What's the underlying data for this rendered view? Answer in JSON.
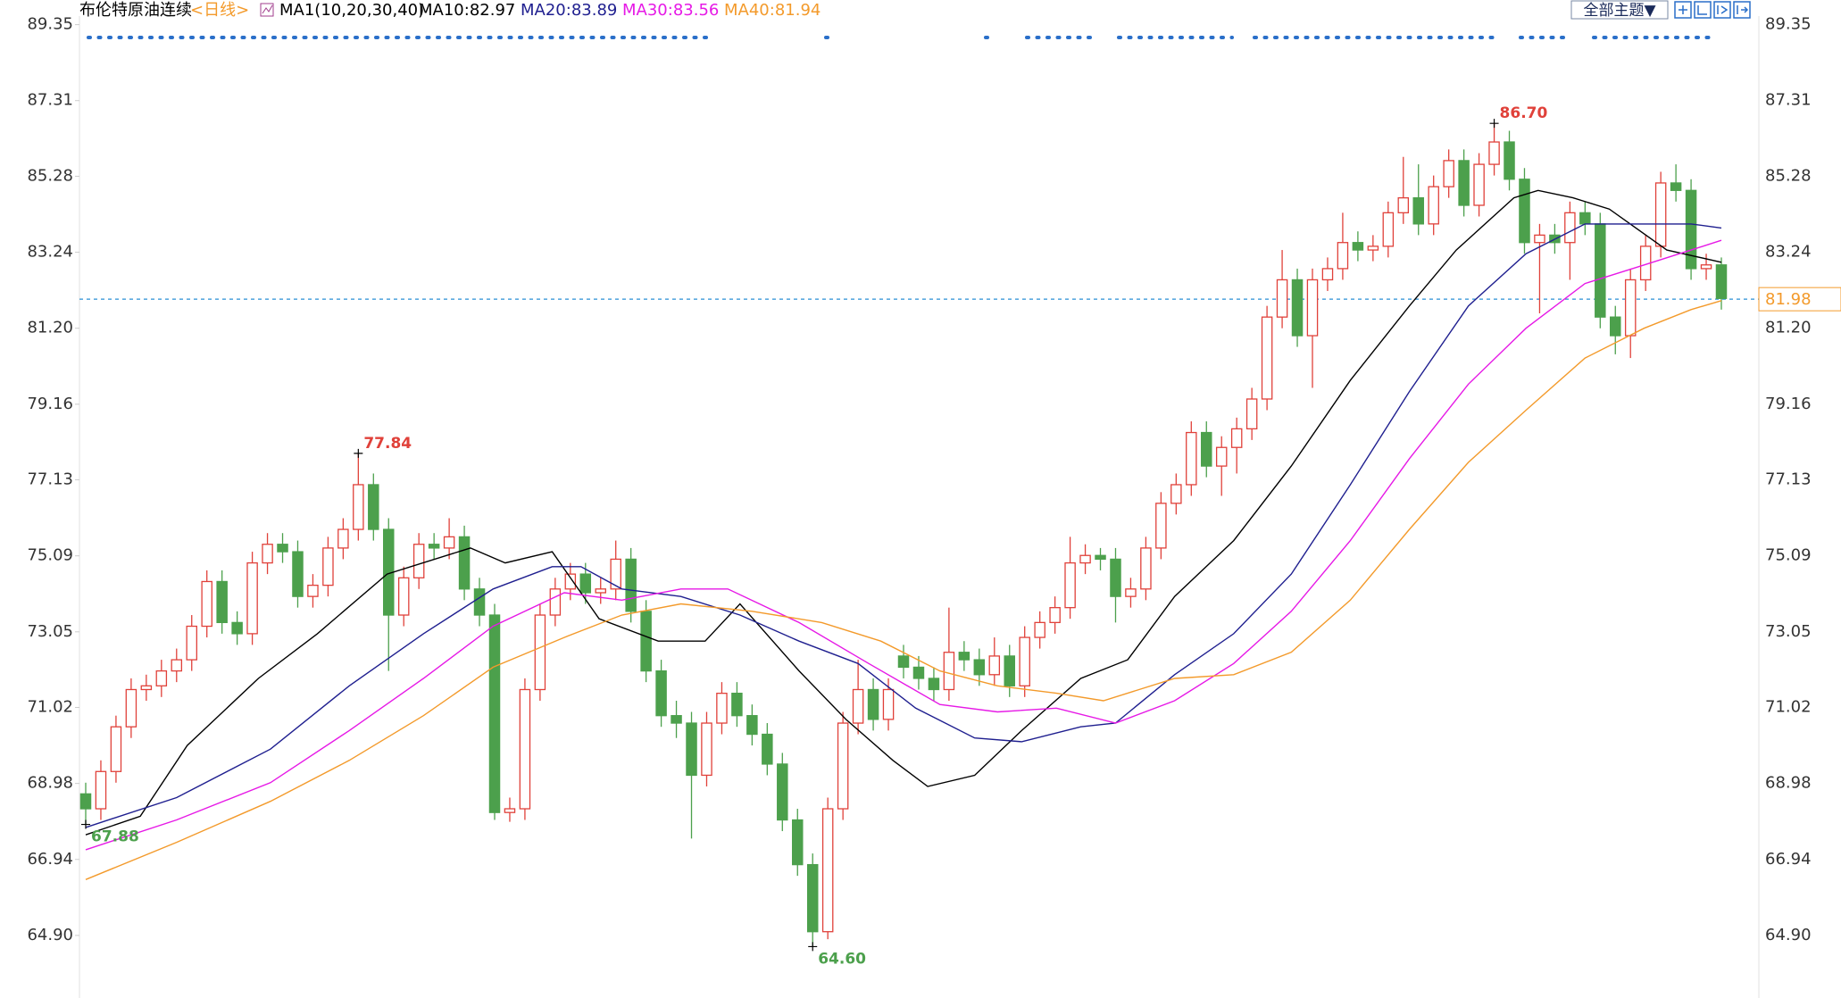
{
  "chart_data": {
    "type": "candlestick",
    "title": "布伦特原油连续",
    "period": "<日线>",
    "indicator": "MA1(10,20,30,40)",
    "button": "全部主题▼",
    "ylim": [
      63.22,
      89.58
    ],
    "yticks": [
      89.35,
      87.31,
      85.28,
      83.24,
      {
        "value": 81.2,
        "label": "81.20"
      },
      79.16,
      77.13,
      75.09,
      73.05,
      71.02,
      68.98,
      66.94,
      {
        "value": 64.9,
        "label": "64.90"
      }
    ],
    "up_color": "#e0413a",
    "down_color": "#4ca04c",
    "ohlc": [
      [
        68.7,
        69.0,
        67.88,
        68.3
      ],
      [
        68.3,
        69.6,
        68.0,
        69.3
      ],
      [
        69.3,
        70.8,
        69.0,
        70.5
      ],
      [
        70.5,
        71.8,
        70.2,
        71.5
      ],
      [
        71.5,
        71.9,
        71.2,
        71.6
      ],
      [
        71.6,
        72.3,
        71.3,
        72.0
      ],
      [
        72.0,
        72.6,
        71.7,
        72.3
      ],
      [
        72.3,
        73.5,
        72.0,
        73.2
      ],
      [
        73.2,
        74.7,
        72.9,
        74.4
      ],
      [
        74.4,
        74.7,
        73.0,
        73.3
      ],
      [
        73.3,
        73.6,
        72.7,
        73.0
      ],
      [
        73.0,
        75.2,
        72.7,
        74.9
      ],
      [
        74.9,
        75.7,
        74.6,
        75.4
      ],
      [
        75.4,
        75.7,
        74.9,
        75.2
      ],
      [
        75.2,
        75.5,
        73.7,
        74.0
      ],
      [
        74.0,
        74.6,
        73.7,
        74.3
      ],
      [
        74.3,
        75.6,
        74.0,
        75.3
      ],
      [
        75.3,
        76.1,
        75.0,
        75.8
      ],
      [
        75.8,
        77.84,
        75.5,
        77.0
      ],
      [
        77.0,
        77.3,
        75.5,
        75.8
      ],
      [
        75.8,
        76.1,
        72.0,
        73.5
      ],
      [
        73.5,
        74.8,
        73.2,
        74.5
      ],
      [
        74.5,
        75.7,
        74.2,
        75.4
      ],
      [
        75.4,
        75.7,
        75.0,
        75.3
      ],
      [
        75.3,
        76.1,
        75.0,
        75.6
      ],
      [
        75.6,
        75.9,
        73.9,
        74.2
      ],
      [
        74.2,
        74.5,
        73.2,
        73.5
      ],
      [
        73.5,
        73.8,
        68.0,
        68.2
      ],
      [
        68.2,
        68.6,
        67.95,
        68.3
      ],
      [
        68.3,
        71.8,
        68.0,
        71.5
      ],
      [
        71.5,
        73.8,
        71.2,
        73.5
      ],
      [
        73.5,
        74.5,
        73.2,
        74.2
      ],
      [
        74.2,
        74.9,
        73.9,
        74.6
      ],
      [
        74.6,
        74.9,
        73.8,
        74.1
      ],
      [
        74.1,
        74.5,
        73.8,
        74.2
      ],
      [
        74.2,
        75.5,
        73.9,
        75.0
      ],
      [
        75.0,
        75.3,
        73.3,
        73.6
      ],
      [
        73.6,
        73.9,
        71.7,
        72.0
      ],
      [
        72.0,
        72.3,
        70.5,
        70.8
      ],
      [
        70.8,
        71.2,
        70.2,
        70.6
      ],
      [
        70.6,
        70.9,
        67.5,
        69.2
      ],
      [
        69.2,
        70.9,
        68.9,
        70.6
      ],
      [
        70.6,
        71.7,
        70.3,
        71.4
      ],
      [
        71.4,
        71.7,
        70.5,
        70.8
      ],
      [
        70.8,
        71.1,
        70.0,
        70.3
      ],
      [
        70.3,
        70.6,
        69.2,
        69.5
      ],
      [
        69.5,
        69.8,
        67.7,
        68.0
      ],
      [
        68.0,
        68.3,
        66.5,
        66.8
      ],
      [
        66.8,
        67.1,
        64.6,
        65.0
      ],
      [
        65.0,
        68.6,
        64.8,
        68.3
      ],
      [
        68.3,
        70.9,
        68.0,
        70.6
      ],
      [
        70.6,
        72.3,
        70.3,
        71.5
      ],
      [
        71.5,
        71.8,
        70.4,
        70.7
      ],
      [
        70.7,
        71.8,
        70.4,
        71.5
      ],
      [
        72.4,
        72.7,
        71.8,
        72.1
      ],
      [
        72.1,
        72.4,
        71.5,
        71.8
      ],
      [
        71.8,
        72.1,
        71.2,
        71.5
      ],
      [
        71.5,
        73.7,
        71.2,
        72.5
      ],
      [
        72.5,
        72.8,
        72.0,
        72.3
      ],
      [
        72.3,
        72.6,
        71.6,
        71.9
      ],
      [
        71.9,
        72.9,
        71.6,
        72.4
      ],
      [
        72.4,
        72.7,
        71.3,
        71.6
      ],
      [
        71.6,
        73.2,
        71.3,
        72.9
      ],
      [
        72.9,
        73.6,
        72.6,
        73.3
      ],
      [
        73.3,
        74.0,
        73.0,
        73.7
      ],
      [
        73.7,
        75.6,
        73.4,
        74.9
      ],
      [
        74.9,
        75.4,
        74.6,
        75.1
      ],
      [
        75.1,
        75.3,
        74.7,
        75.0
      ],
      [
        75.0,
        75.3,
        73.3,
        74.0
      ],
      [
        74.0,
        74.5,
        73.7,
        74.2
      ],
      [
        74.2,
        75.6,
        73.9,
        75.3
      ],
      [
        75.3,
        76.8,
        75.0,
        76.5
      ],
      [
        76.5,
        77.3,
        76.2,
        77.0
      ],
      [
        77.0,
        78.7,
        76.7,
        78.4
      ],
      [
        78.4,
        78.7,
        77.2,
        77.5
      ],
      [
        77.5,
        78.3,
        76.7,
        78.0
      ],
      [
        78.0,
        78.8,
        77.3,
        78.5
      ],
      [
        78.5,
        79.6,
        78.2,
        79.3
      ],
      [
        79.3,
        81.8,
        79.0,
        81.5
      ],
      [
        81.5,
        83.3,
        81.2,
        82.5
      ],
      [
        82.5,
        82.8,
        80.7,
        81.0
      ],
      [
        81.0,
        82.8,
        79.6,
        82.5
      ],
      [
        82.5,
        83.1,
        82.2,
        82.8
      ],
      [
        82.8,
        84.3,
        82.5,
        83.5
      ],
      [
        83.5,
        83.8,
        83.0,
        83.3
      ],
      [
        83.3,
        83.7,
        83.0,
        83.4
      ],
      [
        83.4,
        84.6,
        83.1,
        84.3
      ],
      [
        84.3,
        85.8,
        84.0,
        84.7
      ],
      [
        84.7,
        85.6,
        83.7,
        84.0
      ],
      [
        84.0,
        85.3,
        83.7,
        85.0
      ],
      [
        85.0,
        86.0,
        84.7,
        85.7
      ],
      [
        85.7,
        86.0,
        84.2,
        84.5
      ],
      [
        84.5,
        85.9,
        84.2,
        85.6
      ],
      [
        85.6,
        86.7,
        85.3,
        86.2
      ],
      [
        86.2,
        86.5,
        84.9,
        85.2
      ],
      [
        85.2,
        85.5,
        83.2,
        83.5
      ],
      [
        83.5,
        84.0,
        81.6,
        83.7
      ],
      [
        83.7,
        84.0,
        83.2,
        83.5
      ],
      [
        83.5,
        84.6,
        82.5,
        84.3
      ],
      [
        84.3,
        84.6,
        83.7,
        84.0
      ],
      [
        84.0,
        84.3,
        81.2,
        81.5
      ],
      [
        81.5,
        81.8,
        80.5,
        81.0
      ],
      [
        81.0,
        82.8,
        80.4,
        82.5
      ],
      [
        82.5,
        83.7,
        82.2,
        83.4
      ],
      [
        83.4,
        85.4,
        83.1,
        85.1
      ],
      [
        85.1,
        85.6,
        84.6,
        84.9
      ],
      [
        84.9,
        85.2,
        82.5,
        82.8
      ],
      [
        82.8,
        83.2,
        82.5,
        82.9
      ],
      [
        82.9,
        83.1,
        81.7,
        82.0
      ]
    ],
    "series": [
      {
        "name": "MA10:82.97",
        "color": "#000000",
        "x": [
          0,
          3.6,
          6.7,
          11.4,
          15.3,
          19.9,
          25.4,
          27.7,
          30.8,
          33.9,
          37.8,
          40.9,
          43.2,
          47.1,
          50.2,
          53.3,
          55.6,
          58.7,
          61.8,
          65.7,
          68.8,
          71.9,
          75.8,
          79.6,
          83.5,
          87.4,
          90.5,
          94.3,
          95.9,
          98.2,
          100.6,
          104.4,
          108
        ],
        "values": [
          67.6,
          68.1,
          70.0,
          71.8,
          73.0,
          74.6,
          75.3,
          74.9,
          75.2,
          73.4,
          72.8,
          72.8,
          73.8,
          72.0,
          70.7,
          69.6,
          68.9,
          69.2,
          70.4,
          71.8,
          72.3,
          74.0,
          75.5,
          77.5,
          79.8,
          81.8,
          83.3,
          84.7,
          84.9,
          84.7,
          84.4,
          83.3,
          82.97
        ]
      },
      {
        "name": "MA20:83.89",
        "color": "#1f1f8f",
        "x": [
          0,
          6.0,
          12.2,
          17.4,
          22.3,
          26.9,
          30.8,
          32.7,
          35.4,
          39.3,
          43.2,
          47.1,
          51.0,
          54.8,
          58.7,
          61.8,
          65.7,
          68.0,
          71.9,
          75.8,
          79.6,
          83.5,
          87.4,
          91.3,
          95.1,
          99.0,
          102.9,
          106.0,
          108
        ],
        "values": [
          67.8,
          68.6,
          69.9,
          71.6,
          73.0,
          74.2,
          74.8,
          74.8,
          74.2,
          74.0,
          73.5,
          72.8,
          72.2,
          71.0,
          70.2,
          70.1,
          70.5,
          70.6,
          71.9,
          73.0,
          74.6,
          77.0,
          79.5,
          81.8,
          83.2,
          84.0,
          84.0,
          84.0,
          83.89
        ]
      },
      {
        "name": "MA30:83.56",
        "color": "#e619e6",
        "x": [
          0,
          6.0,
          12.2,
          17.4,
          22.3,
          26.9,
          31.6,
          35.4,
          39.3,
          42.4,
          47.1,
          51.7,
          56.4,
          60.2,
          64.1,
          68.0,
          71.9,
          75.8,
          79.6,
          83.5,
          87.4,
          91.3,
          95.1,
          99.0,
          102.9,
          106.0,
          108
        ],
        "values": [
          67.2,
          68.0,
          69.0,
          70.4,
          71.8,
          73.2,
          74.1,
          73.9,
          74.2,
          74.2,
          73.3,
          72.2,
          71.1,
          70.9,
          71.0,
          70.6,
          71.2,
          72.2,
          73.6,
          75.5,
          77.7,
          79.7,
          81.2,
          82.4,
          82.9,
          83.3,
          83.56
        ]
      },
      {
        "name": "MA40:81.94",
        "color": "#f39a2b",
        "x": [
          0,
          6.0,
          12.2,
          17.4,
          22.3,
          26.9,
          31.6,
          35.4,
          39.3,
          44.0,
          48.6,
          52.5,
          56.4,
          60.2,
          64.1,
          67.2,
          71.9,
          75.8,
          79.6,
          83.5,
          87.4,
          91.3,
          95.1,
          99.0,
          102.9,
          106.0,
          108
        ],
        "values": [
          66.4,
          67.4,
          68.5,
          69.6,
          70.8,
          72.1,
          72.9,
          73.5,
          73.8,
          73.6,
          73.3,
          72.8,
          72.0,
          71.6,
          71.4,
          71.2,
          71.8,
          71.9,
          72.5,
          73.9,
          75.8,
          77.6,
          79.0,
          80.4,
          81.2,
          81.7,
          81.94
        ]
      }
    ],
    "last_price": 81.98,
    "annotations": [
      77.84,
      {
        "value": 86.7,
        "label": "86.70"
      },
      {
        "value": 64.6,
        "label": "64.60"
      },
      67.88
    ]
  }
}
